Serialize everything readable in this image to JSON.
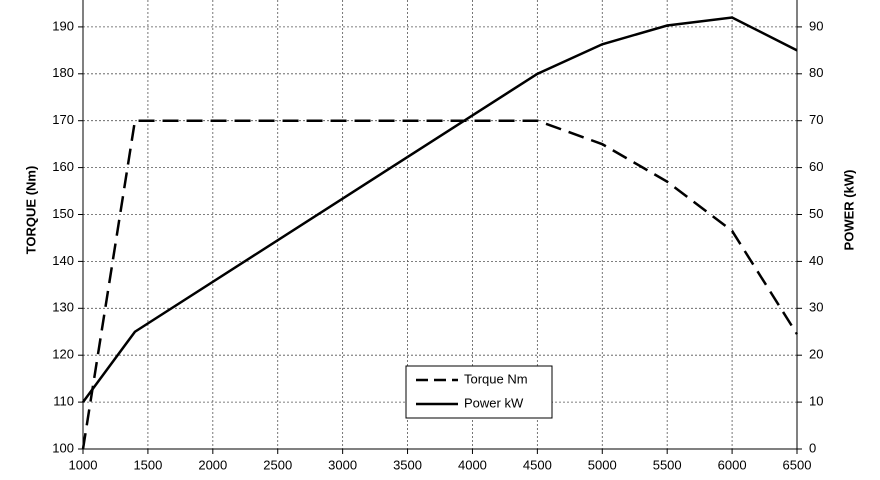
{
  "chart_data": {
    "type": "line",
    "x": [
      1000,
      1400,
      4500,
      5000,
      5500,
      6000,
      6500
    ],
    "series": [
      {
        "name": "Torque Nm",
        "color": "#000000",
        "style": "dashed",
        "axis": "y",
        "values": [
          100,
          170,
          170,
          165,
          157,
          146.5,
          124.5
        ]
      },
      {
        "name": "Power kW",
        "color": "#000000",
        "style": "solid",
        "axis": "y2",
        "values": [
          10,
          25,
          80,
          86.3,
          90.3,
          92,
          85
        ]
      }
    ],
    "ylabel": "TORQUE (Nm)",
    "y2label": "POWER (kW)",
    "xlim": [
      1000,
      6500
    ],
    "xticks": [
      1000,
      1500,
      2000,
      2500,
      3000,
      3500,
      4000,
      4500,
      5000,
      5500,
      6000,
      6500
    ],
    "ylim": [
      100,
      200
    ],
    "yticks": [
      100,
      110,
      120,
      130,
      140,
      150,
      160,
      170,
      180,
      190
    ],
    "y2lim": [
      0,
      100
    ],
    "y2ticks": [
      0,
      10,
      20,
      30,
      40,
      50,
      60,
      70,
      80,
      90
    ],
    "grid": true,
    "legend": "bottom-center"
  }
}
